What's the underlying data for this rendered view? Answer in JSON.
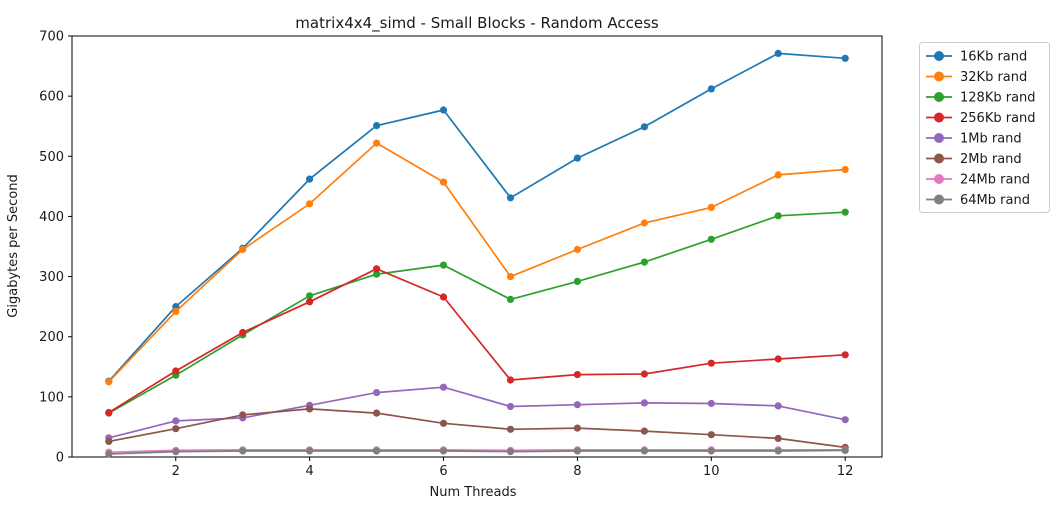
{
  "chart_data": {
    "type": "line",
    "title": "matrix4x4_simd - Small Blocks - Random Access",
    "xlabel": "Num Threads",
    "ylabel": "Gigabytes per Second",
    "x": [
      1,
      2,
      3,
      4,
      5,
      6,
      7,
      8,
      9,
      10,
      11,
      12
    ],
    "xlim": [
      0.45,
      12.55
    ],
    "ylim": [
      0,
      700
    ],
    "xticks": [
      2,
      4,
      6,
      8,
      10,
      12
    ],
    "yticks": [
      0,
      100,
      200,
      300,
      400,
      500,
      600,
      700
    ],
    "grid": false,
    "legend_position": "outside-right",
    "marker": "circle",
    "series": [
      {
        "name": "16Kb rand",
        "color": "#1f77b4",
        "values": [
          126,
          250,
          347,
          462,
          551,
          577,
          431,
          497,
          549,
          612,
          671,
          663
        ]
      },
      {
        "name": "32Kb rand",
        "color": "#ff7f0e",
        "values": [
          125,
          242,
          345,
          421,
          522,
          457,
          300,
          345,
          389,
          415,
          469,
          478
        ]
      },
      {
        "name": "128Kb rand",
        "color": "#2ca02c",
        "values": [
          73,
          136,
          203,
          268,
          304,
          319,
          262,
          292,
          324,
          362,
          401,
          407
        ]
      },
      {
        "name": "256Kb rand",
        "color": "#d62728",
        "values": [
          74,
          143,
          207,
          258,
          313,
          266,
          128,
          137,
          138,
          156,
          163,
          170
        ]
      },
      {
        "name": "1Mb rand",
        "color": "#9467bd",
        "values": [
          32,
          60,
          65,
          86,
          107,
          116,
          84,
          87,
          90,
          89,
          85,
          62
        ]
      },
      {
        "name": "2Mb rand",
        "color": "#8c564b",
        "values": [
          26,
          47,
          70,
          80,
          73,
          56,
          46,
          48,
          43,
          37,
          31,
          16
        ]
      },
      {
        "name": "24Mb rand",
        "color": "#e377c2",
        "values": [
          8,
          11,
          12,
          12,
          12,
          12,
          11,
          12,
          12,
          12,
          12,
          12
        ]
      },
      {
        "name": "64Mb rand",
        "color": "#7f7f7f",
        "values": [
          5,
          9,
          10,
          10,
          10,
          10,
          9,
          10,
          10,
          10,
          10,
          11
        ]
      }
    ]
  }
}
